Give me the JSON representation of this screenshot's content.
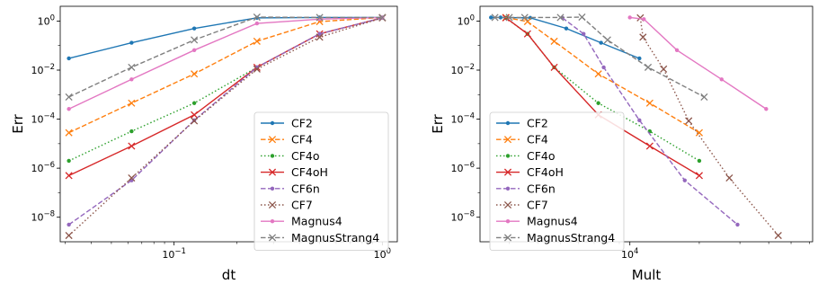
{
  "chart_data": [
    {
      "type": "line",
      "xscale": "log",
      "yscale": "log",
      "xlabel": "dt",
      "ylabel": "Err",
      "xlim": [
        0.0284,
        1.18
      ],
      "ylim": [
        1e-09,
        4.0
      ],
      "x_ticks": [
        {
          "value": 0.1,
          "label": "10^-1"
        },
        {
          "value": 1,
          "label": "10^0"
        }
      ],
      "y_ticks": [
        {
          "value": 1e-08,
          "label": "10^-8"
        },
        {
          "value": 1e-06,
          "label": "10^-6"
        },
        {
          "value": 0.0001,
          "label": "10^-4"
        },
        {
          "value": 0.01,
          "label": "10^-2"
        },
        {
          "value": 1,
          "label": "10^0"
        }
      ],
      "legend_position": "lower-right",
      "series": [
        {
          "name": "CF2",
          "color": "#1f77b4",
          "dash": "solid",
          "marker": "dot",
          "x": [
            0.03125,
            0.0625,
            0.125,
            0.25,
            0.5,
            1.0
          ],
          "y": [
            0.03,
            0.13,
            0.5,
            1.35,
            1.4,
            1.4
          ]
        },
        {
          "name": "CF4",
          "color": "#ff7f0e",
          "dash": "dashed",
          "marker": "x",
          "x": [
            0.03125,
            0.0625,
            0.125,
            0.25,
            0.5,
            1.0
          ],
          "y": [
            2.8e-05,
            0.00045,
            0.007,
            0.15,
            0.95,
            1.4
          ]
        },
        {
          "name": "CF4o",
          "color": "#2ca02c",
          "dash": "dotted",
          "marker": "dot",
          "x": [
            0.03125,
            0.0625,
            0.125,
            0.25,
            0.5,
            1.0
          ],
          "y": [
            2e-06,
            3.2e-05,
            0.00045,
            0.013,
            0.3,
            1.35
          ]
        },
        {
          "name": "CF4oH",
          "color": "#d62728",
          "dash": "solid",
          "marker": "x",
          "x": [
            0.03125,
            0.0625,
            0.125,
            0.25,
            0.5,
            1.0
          ],
          "y": [
            5e-07,
            8e-06,
            0.00015,
            0.013,
            0.3,
            1.35
          ]
        },
        {
          "name": "CF6n",
          "color": "#9467bd",
          "dash": "dashed",
          "marker": "dot",
          "x": [
            0.03125,
            0.0625,
            0.125,
            0.25,
            0.5,
            1.0
          ],
          "y": [
            5e-09,
            3.2e-07,
            9e-05,
            0.013,
            0.3,
            1.35
          ]
        },
        {
          "name": "CF7",
          "color": "#8c564b",
          "dash": "dotted",
          "marker": "x",
          "x": [
            0.03125,
            0.0625,
            0.125,
            0.25,
            0.5,
            1.0
          ],
          "y": [
            1.8e-09,
            4e-07,
            8.5e-05,
            0.011,
            0.22,
            1.35
          ]
        },
        {
          "name": "Magnus4",
          "color": "#e377c2",
          "dash": "solid",
          "marker": "dot",
          "x": [
            0.03125,
            0.0625,
            0.125,
            0.25,
            0.5,
            1.0
          ],
          "y": [
            0.00026,
            0.0042,
            0.065,
            0.8,
            1.2,
            1.4
          ]
        },
        {
          "name": "MagnusStrang4",
          "color": "#7f7f7f",
          "dash": "dashed",
          "marker": "x",
          "x": [
            0.03125,
            0.0625,
            0.125,
            0.25,
            0.5,
            1.0
          ],
          "y": [
            0.0008,
            0.013,
            0.17,
            1.45,
            1.4,
            1.4
          ]
        }
      ]
    },
    {
      "type": "line",
      "xscale": "log",
      "yscale": "log",
      "xlabel": "Mult",
      "ylabel": "Err",
      "xlim": [
        2240,
        62000
      ],
      "ylim": [
        1e-09,
        4.0
      ],
      "x_ticks": [
        {
          "value": 10000,
          "label": "10^4"
        }
      ],
      "y_ticks": [
        {
          "value": 1e-08,
          "label": "10^-8"
        },
        {
          "value": 1e-06,
          "label": "10^-6"
        },
        {
          "value": 0.0001,
          "label": "10^-4"
        },
        {
          "value": 0.01,
          "label": "10^-2"
        },
        {
          "value": 1,
          "label": "10^0"
        }
      ],
      "legend_position": "lower-left",
      "series": [
        {
          "name": "CF2",
          "color": "#1f77b4",
          "dash": "solid",
          "marker": "dot",
          "x": [
            2500,
            2750,
            3700,
            5300,
            7500,
            11000
          ],
          "y": [
            1.4,
            1.4,
            1.35,
            0.5,
            0.13,
            0.03
          ]
        },
        {
          "name": "CF4",
          "color": "#ff7f0e",
          "dash": "dashed",
          "marker": "x",
          "x": [
            2900,
            3600,
            4700,
            7300,
            12200,
            20000
          ],
          "y": [
            1.4,
            0.95,
            0.15,
            0.007,
            0.00045,
            2.8e-05
          ]
        },
        {
          "name": "CF4o",
          "color": "#2ca02c",
          "dash": "dotted",
          "marker": "dot",
          "x": [
            2900,
            3600,
            4700,
            7300,
            12200,
            20000
          ],
          "y": [
            1.35,
            0.3,
            0.013,
            0.00045,
            3.2e-05,
            2e-06
          ]
        },
        {
          "name": "CF4oH",
          "color": "#d62728",
          "dash": "solid",
          "marker": "x",
          "x": [
            2900,
            3600,
            4700,
            7300,
            12200,
            20000
          ],
          "y": [
            1.35,
            0.3,
            0.013,
            0.00015,
            8e-06,
            5e-07
          ]
        },
        {
          "name": "CF6n",
          "color": "#9467bd",
          "dash": "dashed",
          "marker": "dot",
          "x": [
            5100,
            6300,
            7700,
            11000,
            17300,
            29300
          ],
          "y": [
            1.35,
            0.3,
            0.013,
            9e-05,
            3.2e-07,
            5e-09
          ]
        },
        {
          "name": "CF7",
          "color": "#8c564b",
          "dash": "dotted",
          "marker": "x",
          "x": [
            11100,
            11400,
            14000,
            18000,
            27000,
            44000
          ],
          "y": [
            1.35,
            0.22,
            0.011,
            8.5e-05,
            4e-07,
            1.8e-09
          ]
        },
        {
          "name": "Magnus4",
          "color": "#e377c2",
          "dash": "solid",
          "marker": "dot",
          "x": [
            10000,
            11500,
            16000,
            25000,
            39000
          ],
          "y": [
            1.4,
            1.2,
            0.065,
            0.0042,
            0.00026
          ]
        },
        {
          "name": "MagnusStrang4",
          "color": "#7f7f7f",
          "dash": "dashed",
          "marker": "x",
          "x": [
            2600,
            3000,
            3500,
            5000,
            6200,
            8000,
            12000,
            21000
          ],
          "y": [
            1.4,
            1.4,
            1.4,
            1.4,
            1.45,
            0.17,
            0.013,
            0.0008
          ]
        }
      ]
    }
  ]
}
